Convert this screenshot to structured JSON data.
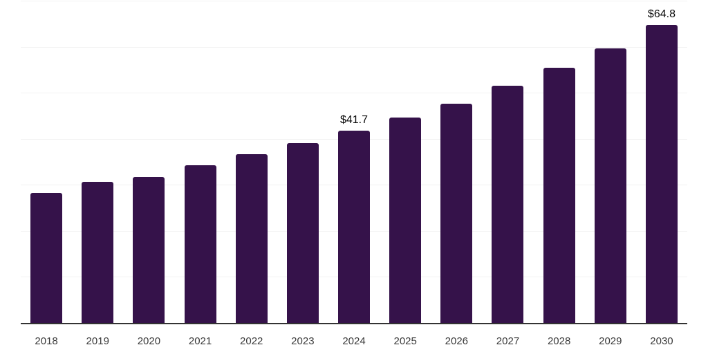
{
  "chart_data": {
    "type": "bar",
    "title": "",
    "xlabel": "",
    "ylabel": "",
    "categories": [
      "2018",
      "2019",
      "2020",
      "2021",
      "2022",
      "2023",
      "2024",
      "2025",
      "2026",
      "2027",
      "2028",
      "2029",
      "2030"
    ],
    "values": [
      28.3,
      30.7,
      31.7,
      34.3,
      36.7,
      39.1,
      41.7,
      44.6,
      47.6,
      51.5,
      55.5,
      59.7,
      64.8
    ],
    "data_labels": [
      "",
      "",
      "",
      "",
      "",
      "",
      "$41.7",
      "",
      "",
      "",
      "",
      "",
      "$64.8"
    ],
    "ylim": [
      0,
      70
    ],
    "gridline_step": 10,
    "grid": true,
    "legend": false,
    "colors": {
      "bar": "#35124a",
      "axis_line": "#333333",
      "gridline": "#f2f2f2",
      "tick_label": "#3a3a3a",
      "data_label": "#0a0a0a",
      "background": "#ffffff"
    }
  }
}
